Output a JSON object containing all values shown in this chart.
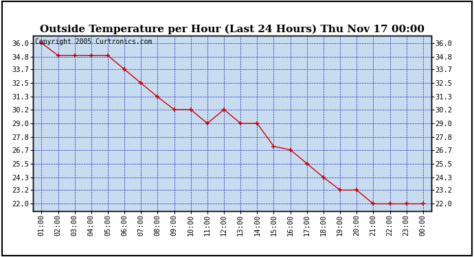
{
  "title": "Outside Temperature per Hour (Last 24 Hours) Thu Nov 17 00:00",
  "copyright": "Copyright 2005 Curtronics.com",
  "x_labels": [
    "01:00",
    "02:00",
    "03:00",
    "04:00",
    "05:00",
    "06:00",
    "07:00",
    "08:00",
    "09:00",
    "10:00",
    "11:00",
    "12:00",
    "13:00",
    "14:00",
    "15:00",
    "16:00",
    "17:00",
    "18:00",
    "19:00",
    "20:00",
    "21:00",
    "22:00",
    "23:00",
    "00:00"
  ],
  "x_values": [
    1,
    2,
    3,
    4,
    5,
    6,
    7,
    8,
    9,
    10,
    11,
    12,
    13,
    14,
    15,
    16,
    17,
    18,
    19,
    20,
    21,
    22,
    23,
    24
  ],
  "y_values": [
    36.0,
    34.9,
    34.9,
    34.9,
    34.9,
    33.7,
    32.5,
    31.3,
    30.2,
    30.2,
    29.0,
    30.2,
    29.0,
    29.0,
    27.0,
    26.7,
    25.5,
    24.3,
    23.2,
    23.2,
    22.0,
    22.0,
    22.0,
    22.0
  ],
  "ylim_min": 21.4,
  "ylim_max": 36.6,
  "yticks": [
    22.0,
    23.2,
    24.3,
    25.5,
    26.7,
    27.8,
    29.0,
    30.2,
    31.3,
    32.5,
    33.7,
    34.8,
    36.0
  ],
  "line_color": "#cc0000",
  "marker_color": "#cc0000",
  "bg_color": "#c8dcf0",
  "grid_color": "#0000bb",
  "border_color": "#000000",
  "title_fontsize": 11,
  "copyright_fontsize": 7,
  "tick_fontsize": 7.5
}
